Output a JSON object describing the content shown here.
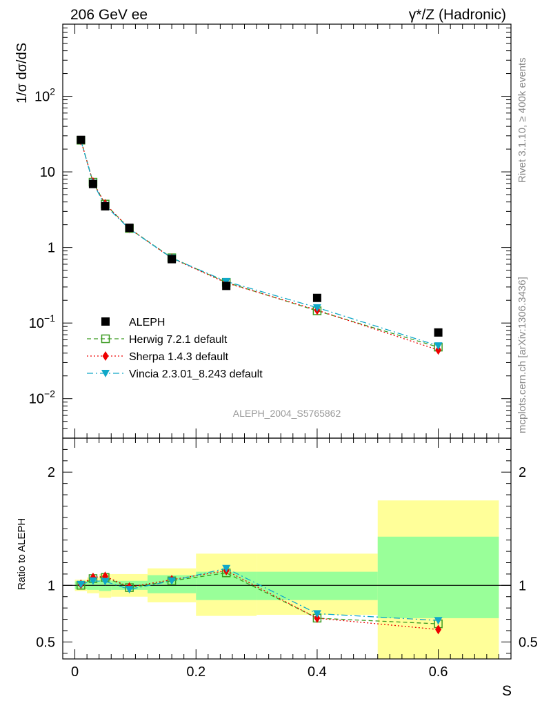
{
  "header": {
    "left_title": "206 GeV ee",
    "right_title": "γ*/Z (Hadronic)"
  },
  "side_labels": {
    "rivet": "Rivet 3.1.10, ≥ 400k events",
    "mcplots": "mcplots.cern.ch [arXiv:1306.3436]"
  },
  "watermark": "ALEPH_2004_S5765862",
  "colors": {
    "aleph": "#000000",
    "herwig": "#3a9a20",
    "sherpa": "#ee0000",
    "vincia": "#10a8c8",
    "band_inner": "#99ff99",
    "band_outer": "#ffff99"
  },
  "chart_data": [
    {
      "type": "scatter",
      "panel": "main",
      "ylabel": "1/σ  dσ/dS",
      "yscale": "log",
      "ylim": [
        0.003,
        900
      ],
      "xlim": [
        -0.02,
        0.72
      ],
      "y_tick_labels": [
        "10^-2",
        "10^-1",
        "1",
        "10",
        "10^2"
      ],
      "y_tick_values": [
        0.01,
        0.1,
        1,
        10,
        100
      ],
      "x": [
        0.01,
        0.03,
        0.05,
        0.09,
        0.16,
        0.25,
        0.4,
        0.6
      ],
      "series": [
        {
          "name": "ALEPH",
          "marker": "square",
          "values": [
            26.5,
            6.9,
            3.5,
            1.82,
            0.7,
            0.31,
            0.215,
            0.075
          ]
        },
        {
          "name": "Herwig 7.2.1 default",
          "marker": "open-square",
          "line": "dashed",
          "values": [
            26.2,
            7.3,
            3.75,
            1.78,
            0.73,
            0.345,
            0.145,
            0.048
          ]
        },
        {
          "name": "Sherpa 1.4.3 default",
          "marker": "diamond",
          "line": "dotted",
          "values": [
            26.0,
            7.3,
            3.78,
            1.78,
            0.72,
            0.34,
            0.148,
            0.044
          ]
        },
        {
          "name": "Vincia 2.3.01_8.243 default",
          "marker": "triangle-down",
          "line": "dashdot",
          "values": [
            26.0,
            7.1,
            3.6,
            1.76,
            0.725,
            0.355,
            0.16,
            0.05
          ]
        }
      ]
    },
    {
      "type": "scatter",
      "panel": "ratio",
      "ylabel": "Ratio to ALEPH",
      "xlabel": "S",
      "ylim": [
        0.35,
        2.3
      ],
      "xlim": [
        -0.02,
        0.72
      ],
      "y_tick_labels": [
        "0.5",
        "1",
        "2"
      ],
      "y_tick_values": [
        0.5,
        1,
        2
      ],
      "x_tick_labels": [
        "0",
        "0.2",
        "0.4",
        "0.6"
      ],
      "x_tick_values": [
        0,
        0.2,
        0.4,
        0.6
      ],
      "bins": [
        {
          "lo": 0.0,
          "hi": 0.02,
          "inner": [
            0.965,
            1.035
          ],
          "outer": [
            0.95,
            1.05
          ]
        },
        {
          "lo": 0.02,
          "hi": 0.04,
          "inner": [
            0.96,
            1.04
          ],
          "outer": [
            0.93,
            1.07
          ]
        },
        {
          "lo": 0.04,
          "hi": 0.06,
          "inner": [
            0.95,
            1.05
          ],
          "outer": [
            0.89,
            1.1
          ]
        },
        {
          "lo": 0.06,
          "hi": 0.12,
          "inner": [
            0.96,
            1.04
          ],
          "outer": [
            0.9,
            1.1
          ]
        },
        {
          "lo": 0.12,
          "hi": 0.2,
          "inner": [
            0.93,
            1.09
          ],
          "outer": [
            0.85,
            1.15
          ]
        },
        {
          "lo": 0.2,
          "hi": 0.3,
          "inner": [
            0.87,
            1.12
          ],
          "outer": [
            0.73,
            1.28
          ]
        },
        {
          "lo": 0.3,
          "hi": 0.5,
          "inner": [
            0.87,
            1.12
          ],
          "outer": [
            0.74,
            1.28
          ]
        },
        {
          "lo": 0.5,
          "hi": 0.7,
          "inner": [
            0.71,
            1.43
          ],
          "outer": [
            0.35,
            1.75
          ]
        }
      ],
      "series": [
        {
          "name": "Herwig 7.2.1 default",
          "values": [
            1.0,
            1.06,
            1.07,
            0.98,
            1.04,
            1.11,
            0.71,
            0.66
          ]
        },
        {
          "name": "Sherpa 1.4.3 default",
          "values": [
            1.01,
            1.07,
            1.08,
            0.985,
            1.05,
            1.13,
            0.71,
            0.61
          ]
        },
        {
          "name": "Vincia 2.3.01_8.243 default",
          "values": [
            1.01,
            1.04,
            1.035,
            0.965,
            1.04,
            1.15,
            0.75,
            0.69
          ]
        }
      ]
    }
  ]
}
